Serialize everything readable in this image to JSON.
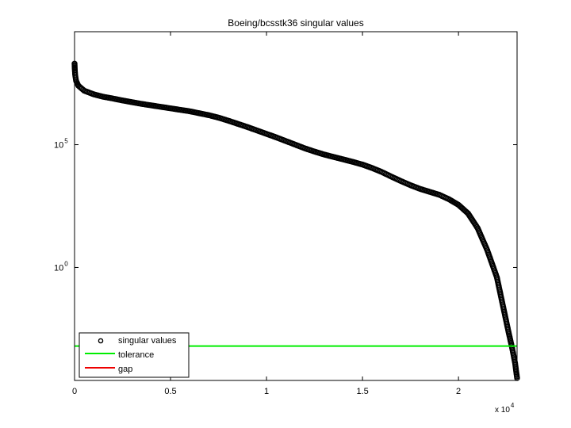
{
  "chart_data": {
    "type": "scatter",
    "title": "Boeing/bcsstk36 singular values",
    "xlabel": "",
    "ylabel": "",
    "x_multiplier_label": {
      "base": "x 10",
      "exponent": "4"
    },
    "xlim": [
      0,
      23052
    ],
    "ylim_log10": [
      -4.6,
      9.6
    ],
    "y_scale": "log",
    "grid": false,
    "x_ticks": [
      {
        "value": 0,
        "label": "0"
      },
      {
        "value": 5000,
        "label": "0.5"
      },
      {
        "value": 10000,
        "label": "1"
      },
      {
        "value": 15000,
        "label": "1.5"
      },
      {
        "value": 20000,
        "label": "2"
      }
    ],
    "y_ticks": [
      {
        "log10": 5,
        "base": "10",
        "exponent": "5"
      },
      {
        "log10": 0,
        "base": "10",
        "exponent": "0"
      }
    ],
    "series": [
      {
        "name": "singular values",
        "style": "marker",
        "color": "#000000",
        "points_log10": [
          [
            0,
            8.3
          ],
          [
            10,
            8.1
          ],
          [
            30,
            7.85
          ],
          [
            80,
            7.6
          ],
          [
            200,
            7.4
          ],
          [
            500,
            7.2
          ],
          [
            1000,
            7.05
          ],
          [
            1500,
            6.95
          ],
          [
            2000,
            6.88
          ],
          [
            2500,
            6.8
          ],
          [
            3000,
            6.73
          ],
          [
            3500,
            6.66
          ],
          [
            4000,
            6.6
          ],
          [
            4500,
            6.54
          ],
          [
            5000,
            6.48
          ],
          [
            5500,
            6.42
          ],
          [
            6000,
            6.36
          ],
          [
            6500,
            6.28
          ],
          [
            7000,
            6.2
          ],
          [
            7500,
            6.1
          ],
          [
            8000,
            5.98
          ],
          [
            8500,
            5.85
          ],
          [
            9000,
            5.72
          ],
          [
            9500,
            5.58
          ],
          [
            10000,
            5.44
          ],
          [
            10500,
            5.3
          ],
          [
            11000,
            5.15
          ],
          [
            11500,
            5.0
          ],
          [
            12000,
            4.85
          ],
          [
            12500,
            4.72
          ],
          [
            13000,
            4.6
          ],
          [
            13500,
            4.5
          ],
          [
            14000,
            4.4
          ],
          [
            14500,
            4.3
          ],
          [
            15000,
            4.19
          ],
          [
            15500,
            4.05
          ],
          [
            16000,
            3.89
          ],
          [
            16500,
            3.7
          ],
          [
            17000,
            3.52
          ],
          [
            17500,
            3.35
          ],
          [
            18000,
            3.2
          ],
          [
            18500,
            3.08
          ],
          [
            19000,
            2.96
          ],
          [
            19500,
            2.78
          ],
          [
            20000,
            2.55
          ],
          [
            20500,
            2.2
          ],
          [
            21000,
            1.6
          ],
          [
            21500,
            0.7
          ],
          [
            22000,
            -0.4
          ],
          [
            22300,
            -1.5
          ],
          [
            22600,
            -2.6
          ],
          [
            22800,
            -3.3
          ],
          [
            22950,
            -3.9
          ],
          [
            23000,
            -4.2
          ],
          [
            23052,
            -4.5
          ]
        ]
      },
      {
        "name": "tolerance",
        "style": "line",
        "color": "#00ee00",
        "y_log10": -3.2
      },
      {
        "name": "gap",
        "style": "line",
        "color": "#ee0000"
      }
    ],
    "legend": {
      "placement": "bottom-left",
      "entries": [
        "singular values",
        "tolerance",
        "gap"
      ]
    }
  }
}
